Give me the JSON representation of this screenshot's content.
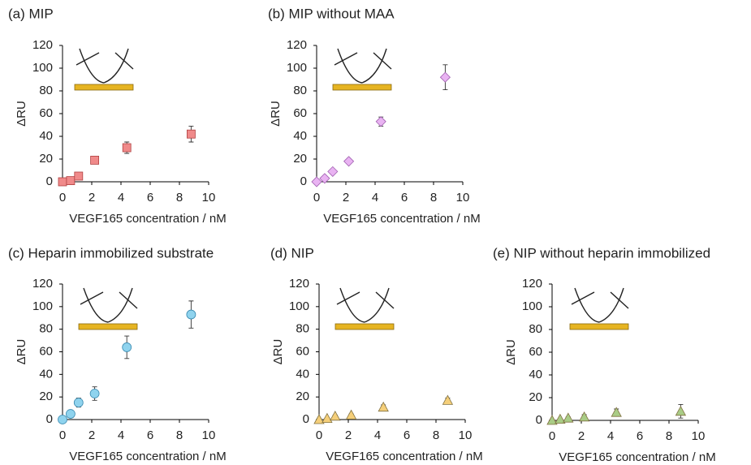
{
  "chart_data": [
    {
      "type": "scatter",
      "title": "(a) MIP",
      "xlabel": "VEGF165 concentration  / nM",
      "ylabel": "ΔRU",
      "x": [
        0,
        0.55,
        1.1,
        2.2,
        4.4,
        8.8
      ],
      "values": [
        0,
        1,
        5,
        19,
        30,
        42
      ],
      "errors": [
        0.5,
        0.5,
        1,
        2,
        5,
        7
      ],
      "color": "#f08a8a",
      "marker": "square",
      "xlim": [
        0,
        10
      ],
      "ylim": [
        0,
        120
      ],
      "xticks": [
        0,
        2,
        4,
        6,
        8,
        10
      ],
      "yticks": [
        0,
        20,
        40,
        60,
        80,
        100,
        120
      ]
    },
    {
      "type": "scatter",
      "title": "(b) MIP without MAA",
      "xlabel": "VEGF165 concentration  / nM",
      "ylabel": "ΔRU",
      "x": [
        0,
        0.55,
        1.1,
        2.2,
        4.4,
        8.8
      ],
      "values": [
        0,
        3,
        9,
        18,
        53,
        92
      ],
      "errors": [
        0.5,
        1,
        2,
        2,
        4,
        11
      ],
      "color": "#e9b3f2",
      "marker": "diamond",
      "xlim": [
        0,
        10
      ],
      "ylim": [
        0,
        120
      ],
      "xticks": [
        0,
        2,
        4,
        6,
        8,
        10
      ],
      "yticks": [
        0,
        20,
        40,
        60,
        80,
        100,
        120
      ]
    },
    {
      "type": "scatter",
      "title": "(c) Heparin immobilized substrate",
      "xlabel": "VEGF165 concentration  / nM",
      "ylabel": "ΔRU",
      "x": [
        0,
        0.55,
        1.1,
        2.2,
        4.4,
        8.8
      ],
      "values": [
        0,
        5,
        15,
        23,
        64,
        93
      ],
      "errors": [
        0.5,
        3,
        4,
        6,
        10,
        12
      ],
      "color": "#8fd3ee",
      "marker": "circle",
      "xlim": [
        0,
        10
      ],
      "ylim": [
        0,
        120
      ],
      "xticks": [
        0,
        2,
        4,
        6,
        8,
        10
      ],
      "yticks": [
        0,
        20,
        40,
        60,
        80,
        100,
        120
      ]
    },
    {
      "type": "scatter",
      "title": "(d) NIP",
      "xlabel": "VEGF165 concentration  / nM",
      "ylabel": "ΔRU",
      "x": [
        0,
        0.55,
        1.1,
        2.2,
        4.4,
        8.8
      ],
      "values": [
        0,
        1,
        3,
        4,
        11,
        17
      ],
      "errors": [
        0.5,
        0.5,
        1,
        1,
        2,
        2
      ],
      "color": "#f5cf7a",
      "marker": "triangle",
      "xlim": [
        0,
        10
      ],
      "ylim": [
        0,
        120
      ],
      "xticks": [
        0,
        2,
        4,
        6,
        8,
        10
      ],
      "yticks": [
        0,
        20,
        40,
        60,
        80,
        100,
        120
      ]
    },
    {
      "type": "scatter",
      "title": "(e) NIP without heparin immobilized",
      "xlabel": "VEGF165 concentration  / nM",
      "ylabel": "ΔRU",
      "x": [
        0,
        0.55,
        1.1,
        2.2,
        4.4,
        8.8
      ],
      "values": [
        0,
        1,
        2,
        3,
        7,
        8
      ],
      "errors": [
        0.5,
        0.5,
        1,
        2,
        3,
        6
      ],
      "color": "#a9cc86",
      "marker": "triangle",
      "xlim": [
        0,
        10
      ],
      "ylim": [
        0,
        120
      ],
      "xticks": [
        0,
        2,
        4,
        6,
        8,
        10
      ],
      "yticks": [
        0,
        20,
        40,
        60,
        80,
        100,
        120
      ]
    }
  ]
}
